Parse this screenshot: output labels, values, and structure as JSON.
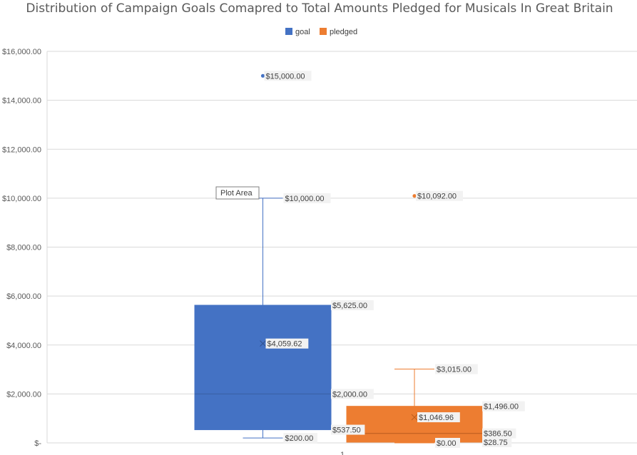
{
  "chart_data": {
    "type": "box",
    "title": "Distribution of Campaign Goals Comapred to Total Amounts Pledged for Musicals In Great Britain",
    "xlabel": "",
    "ylabel": "",
    "ylim": [
      0,
      16000
    ],
    "yticks": [
      0,
      2000,
      4000,
      6000,
      8000,
      10000,
      12000,
      14000,
      16000
    ],
    "ytick_labels": [
      "$-",
      "$2,000.00",
      "$4,000.00",
      "$6,000.00",
      "$8,000.00",
      "$10,000.00",
      "$12,000.00",
      "$14,000.00",
      "$16,000.00"
    ],
    "categories": [
      "1"
    ],
    "grid": true,
    "legend_position": "top",
    "series": [
      {
        "name": "goal",
        "color": "#4472C4",
        "min": 200,
        "q1": 537.5,
        "median": 2000,
        "q3": 5625,
        "max": 10000,
        "mean": 4059.62,
        "outliers": [
          15000
        ],
        "labels": {
          "min": "$200.00",
          "q1": "$537.50",
          "median": "$2,000.00",
          "q3": "$5,625.00",
          "max": "$10,000.00",
          "mean": "$4,059.62",
          "outliers": [
            "$15,000.00"
          ]
        }
      },
      {
        "name": "pledged",
        "color": "#ED7D31",
        "min": 0,
        "q1": 28.75,
        "median": 386.5,
        "q3": 1496,
        "max": 3015,
        "mean": 1046.96,
        "outliers": [
          10092
        ],
        "labels": {
          "min": "$0.00",
          "q1": "$28.75",
          "median": "$386.50",
          "q3": "$1,496.00",
          "max": "$3,015.00",
          "mean": "$1,046.96",
          "outliers": [
            "$10,092.00"
          ]
        }
      }
    ]
  },
  "tooltip": {
    "text": "Plot Area"
  }
}
